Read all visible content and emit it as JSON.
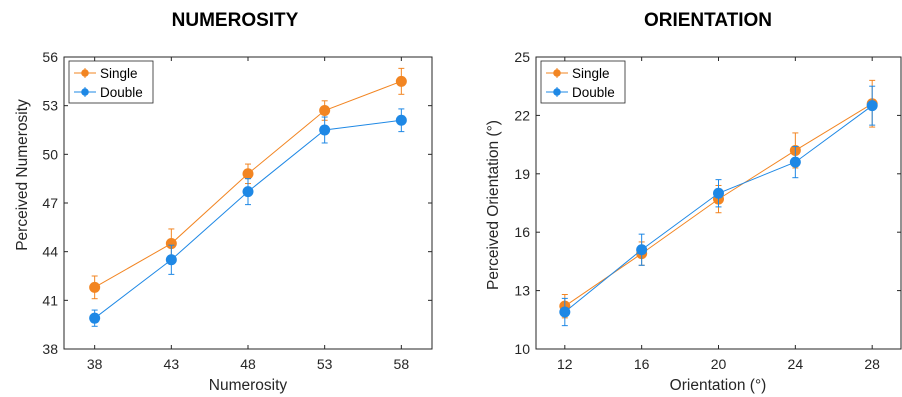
{
  "charts": [
    {
      "type": "line",
      "title": "NUMEROSITY",
      "xlabel": "Numerosity",
      "ylabel": "Perceived Numerosity",
      "xlim": [
        36,
        60
      ],
      "ylim": [
        38,
        56
      ],
      "xticks": [
        38,
        43,
        48,
        53,
        58
      ],
      "yticks": [
        38,
        41,
        44,
        47,
        50,
        53,
        56
      ],
      "legend": {
        "position": "top-left"
      },
      "series": [
        {
          "name": "Single",
          "color": "#F28522",
          "x": [
            38,
            43,
            48,
            53,
            58
          ],
          "y": [
            41.8,
            44.5,
            48.8,
            52.7,
            54.5
          ],
          "err": [
            0.7,
            0.9,
            0.6,
            0.6,
            0.8
          ]
        },
        {
          "name": "Double",
          "color": "#1E88E5",
          "x": [
            38,
            43,
            48,
            53,
            58
          ],
          "y": [
            39.9,
            43.5,
            47.7,
            51.5,
            52.1
          ],
          "err": [
            0.5,
            0.9,
            0.8,
            0.8,
            0.7
          ]
        }
      ]
    },
    {
      "type": "line",
      "title": "ORIENTATION",
      "xlabel": "Orientation (°)",
      "ylabel": "Perceived Orientation (°)",
      "xlim": [
        10.5,
        29.5
      ],
      "ylim": [
        10,
        25
      ],
      "xticks": [
        12,
        16,
        20,
        24,
        28
      ],
      "yticks": [
        10,
        13,
        16,
        19,
        22,
        25
      ],
      "legend": {
        "position": "top-left"
      },
      "series": [
        {
          "name": "Single",
          "color": "#F28522",
          "x": [
            12,
            16,
            20,
            24,
            28
          ],
          "y": [
            12.2,
            14.9,
            17.7,
            20.2,
            22.6
          ],
          "err": [
            0.6,
            0.6,
            0.7,
            0.9,
            1.2
          ]
        },
        {
          "name": "Double",
          "color": "#1E88E5",
          "x": [
            12,
            16,
            20,
            24,
            28
          ],
          "y": [
            11.9,
            15.1,
            18.0,
            19.6,
            22.5
          ],
          "err": [
            0.7,
            0.8,
            0.7,
            0.8,
            1.0
          ]
        }
      ]
    }
  ]
}
